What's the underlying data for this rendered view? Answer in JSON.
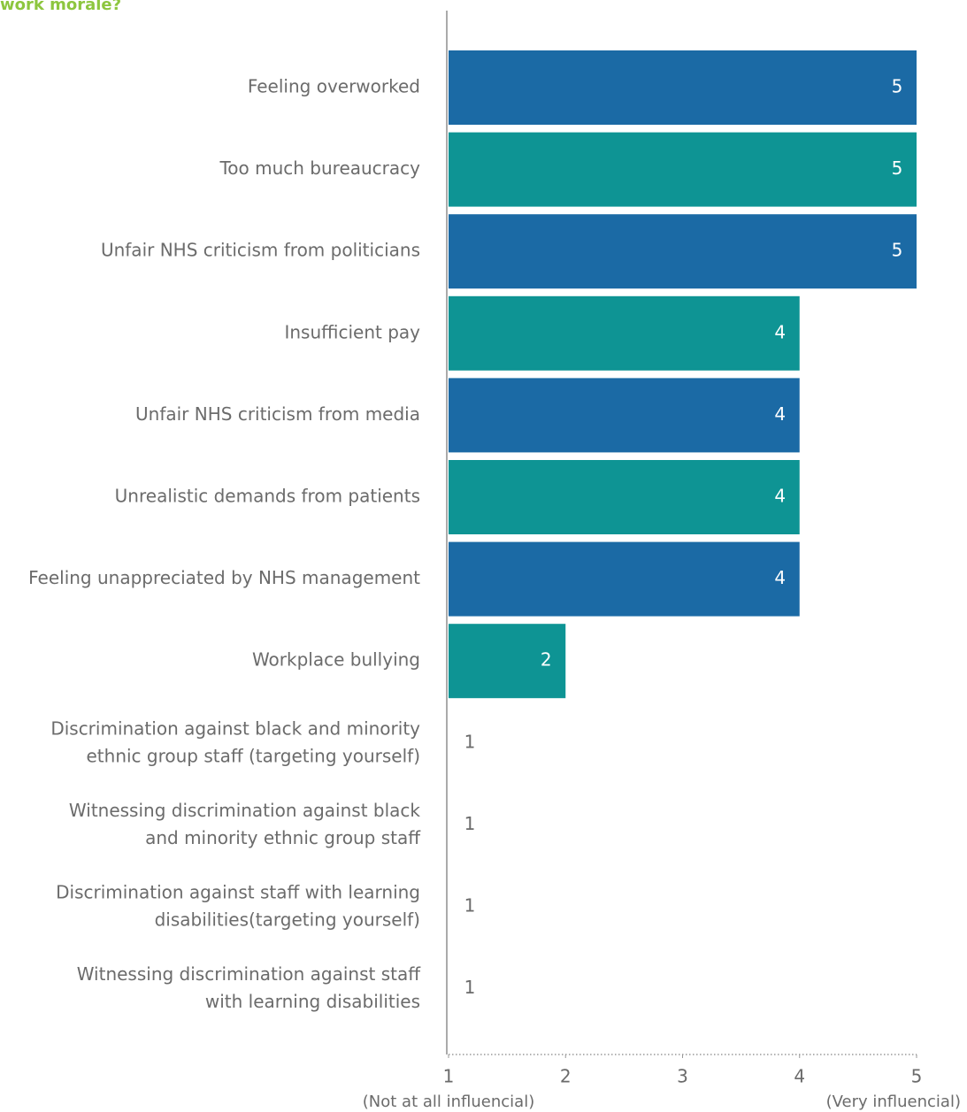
{
  "chart_data": {
    "type": "hbar",
    "title": "work morale?",
    "categories": [
      "Feeling overworked",
      "Too much bureaucracy",
      "Unfair NHS criticism from politicians",
      "Insufficient pay",
      "Unfair NHS criticism from media",
      "Unrealistic demands from patients",
      "Feeling unappreciated by NHS management",
      "Workplace bullying",
      "Discrimination against black and minority\nethnic group staff (targeting yourself)",
      "Witnessing discrimination against black\nand minority ethnic group staff",
      "Discrimination against staff with learning\ndisabilities(targeting yourself)",
      "Witnessing discrimination against staff\nwith learning disabilities"
    ],
    "values": [
      5,
      5,
      5,
      4,
      4,
      4,
      4,
      2,
      1,
      1,
      1,
      1
    ],
    "colors": [
      "#1b6aa5",
      "#0e9494",
      "#1b6aa5",
      "#0e9494",
      "#1b6aa5",
      "#0e9494",
      "#1b6aa5",
      "#0e9494",
      "#1b6aa5",
      "#0e9494",
      "#1b6aa5",
      "#0e9494"
    ],
    "xlim": [
      1,
      5
    ],
    "xticks": [
      1,
      2,
      3,
      4,
      5
    ],
    "x_low_label": "(Not at all influencial)",
    "x_high_label": "(Very influencial)"
  }
}
